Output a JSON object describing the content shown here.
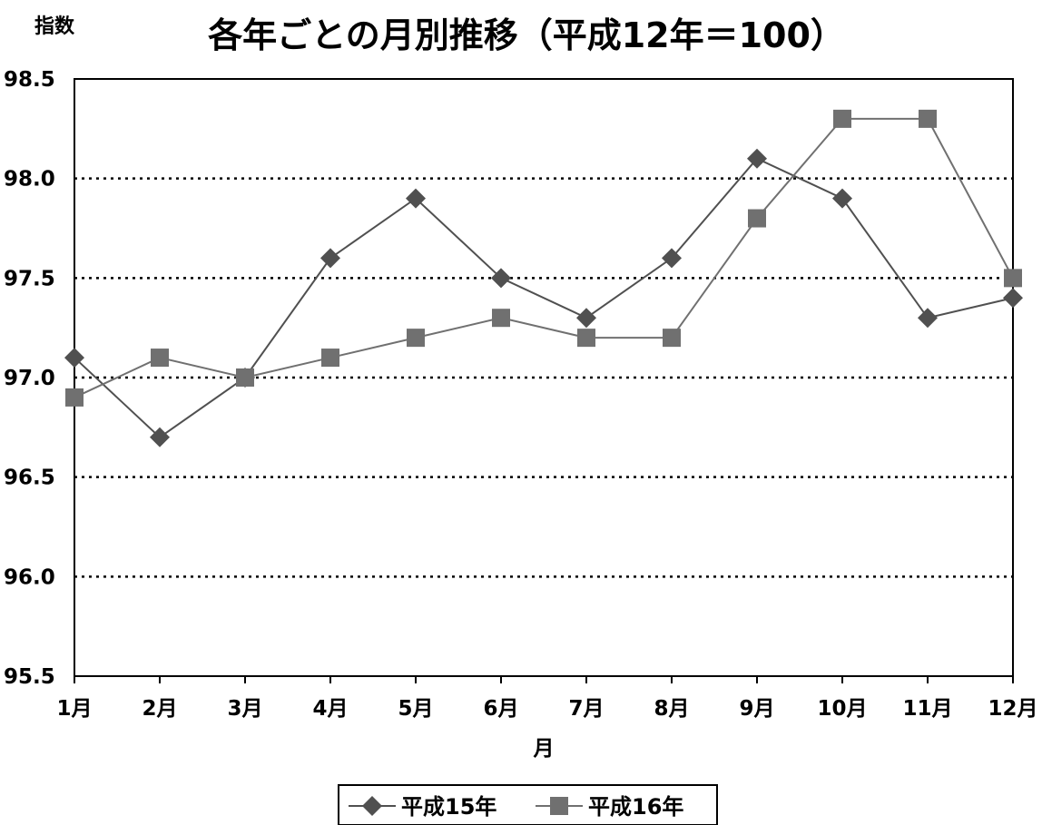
{
  "chart_data": {
    "type": "line",
    "title": "各年ごとの月別推移（平成12年＝100）",
    "ylabel": "指数",
    "xlabel": "月",
    "categories": [
      "1月",
      "2月",
      "3月",
      "4月",
      "5月",
      "6月",
      "7月",
      "8月",
      "9月",
      "10月",
      "11月",
      "12月"
    ],
    "series": [
      {
        "name": "平成15年",
        "marker": "diamond",
        "color": "#505050",
        "values": [
          97.1,
          96.7,
          97.0,
          97.6,
          97.9,
          97.5,
          97.3,
          97.6,
          98.1,
          97.9,
          97.3,
          97.4
        ]
      },
      {
        "name": "平成16年",
        "marker": "square",
        "color": "#707070",
        "values": [
          96.9,
          97.1,
          97.0,
          97.1,
          97.2,
          97.3,
          97.2,
          97.2,
          97.8,
          98.3,
          98.3,
          97.5
        ]
      }
    ],
    "ylim": [
      95.5,
      98.5
    ],
    "yticks": [
      95.5,
      96.0,
      96.5,
      97.0,
      97.5,
      98.0,
      98.5
    ],
    "ytick_labels": [
      "95.5",
      "96.0",
      "96.5",
      "97.0",
      "97.5",
      "98.0",
      "98.5"
    ],
    "grid": "horizontal-dotted",
    "legend": "bottom-center"
  }
}
